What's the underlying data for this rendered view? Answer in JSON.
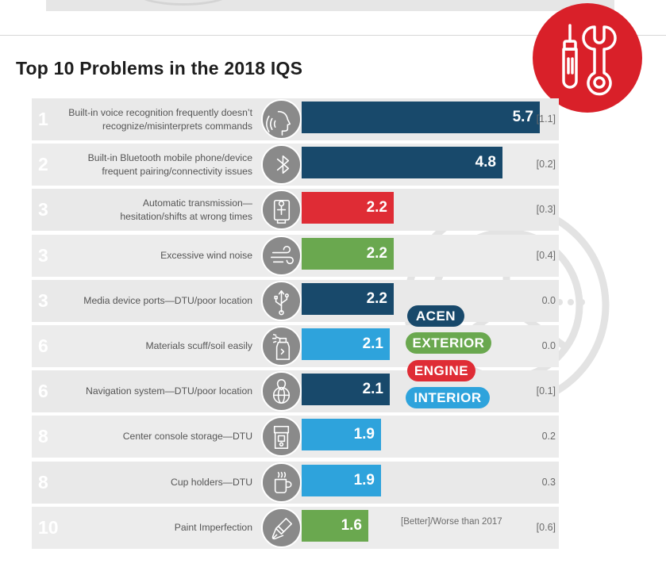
{
  "chart_data": {
    "type": "bar",
    "orientation": "horizontal",
    "title": "Top 10 Problems in the 2018 IQS",
    "xlim": [
      0,
      6.0
    ],
    "categories": [
      "Built-in voice recognition frequently doesn't recognize/misinterprets commands",
      "Built-in Bluetooth mobile phone/device frequent pairing/connectivity issues",
      "Automatic transmission—hesitation/shifts at wrong times",
      "Excessive wind noise",
      "Media device ports—DTU/poor location",
      "Materials scuff/soil easily",
      "Navigation system—DTU/poor location",
      "Center console storage—DTU",
      "Cup holders—DTU",
      "Paint Imperfection"
    ],
    "rows": [
      {
        "rank": "1",
        "label_lines": [
          "Built-in voice recognition frequently doesn’t",
          "recognize/misinterprets commands"
        ],
        "value": 5.7,
        "value_label": "5.7",
        "category": "ACEN",
        "delta": "[1.1]",
        "icon": "voice-recognition-icon"
      },
      {
        "rank": "2",
        "label_lines": [
          "Built-in Bluetooth mobile phone/device",
          "frequent pairing/connectivity issues"
        ],
        "value": 4.8,
        "value_label": "4.8",
        "category": "ACEN",
        "delta": "[0.2]",
        "icon": "bluetooth-icon"
      },
      {
        "rank": "3",
        "label_lines": [
          "Automatic transmission—",
          "hesitation/shifts at wrong times"
        ],
        "value": 2.2,
        "value_label": "2.2",
        "category": "ENGINE",
        "delta": "[0.3]",
        "icon": "gear-shifter-icon"
      },
      {
        "rank": "3",
        "label_lines": [
          "Excessive wind noise"
        ],
        "value": 2.2,
        "value_label": "2.2",
        "category": "EXTERIOR",
        "delta": "[0.4]",
        "icon": "wind-icon"
      },
      {
        "rank": "3",
        "label_lines": [
          "Media device ports—DTU/poor location"
        ],
        "value": 2.2,
        "value_label": "2.2",
        "category": "ACEN",
        "delta": "0.0",
        "icon": "usb-icon"
      },
      {
        "rank": "6",
        "label_lines": [
          "Materials scuff/soil easily"
        ],
        "value": 2.1,
        "value_label": "2.1",
        "category": "INTERIOR",
        "delta": "0.0",
        "icon": "spray-bottle-icon"
      },
      {
        "rank": "6",
        "label_lines": [
          "Navigation system—DTU/poor location"
        ],
        "value": 2.1,
        "value_label": "2.1",
        "category": "ACEN",
        "delta": "[0.1]",
        "icon": "globe-pin-icon"
      },
      {
        "rank": "8",
        "label_lines": [
          "Center console storage—DTU"
        ],
        "value": 1.9,
        "value_label": "1.9",
        "category": "INTERIOR",
        "delta": "0.2",
        "icon": "console-storage-icon"
      },
      {
        "rank": "8",
        "label_lines": [
          "Cup holders—DTU"
        ],
        "value": 1.9,
        "value_label": "1.9",
        "category": "INTERIOR",
        "delta": "0.3",
        "icon": "cup-icon"
      },
      {
        "rank": "10",
        "label_lines": [
          "Paint Imperfection"
        ],
        "value": 1.6,
        "value_label": "1.6",
        "category": "EXTERIOR",
        "delta": "[0.6]",
        "icon": "paint-brush-icon"
      }
    ],
    "legend": [
      {
        "name": "ACEN",
        "color": "#18496b"
      },
      {
        "name": "EXTERIOR",
        "color": "#6aa84f"
      },
      {
        "name": "ENGINE",
        "color": "#df2c35"
      },
      {
        "name": "INTERIOR",
        "color": "#2ea3dc"
      }
    ],
    "legend_placement": "right-middle",
    "delta_note": "[Better]/Worse than 2017",
    "grid": false
  },
  "badge_icon": "screwdriver-wrench-icon",
  "colors": {
    "ACEN": "#18496b",
    "EXTERIOR": "#6aa84f",
    "ENGINE": "#df2c35",
    "INTERIOR": "#2ea3dc",
    "badge": "#d92029",
    "icon_circle": "#8a8a8a"
  }
}
